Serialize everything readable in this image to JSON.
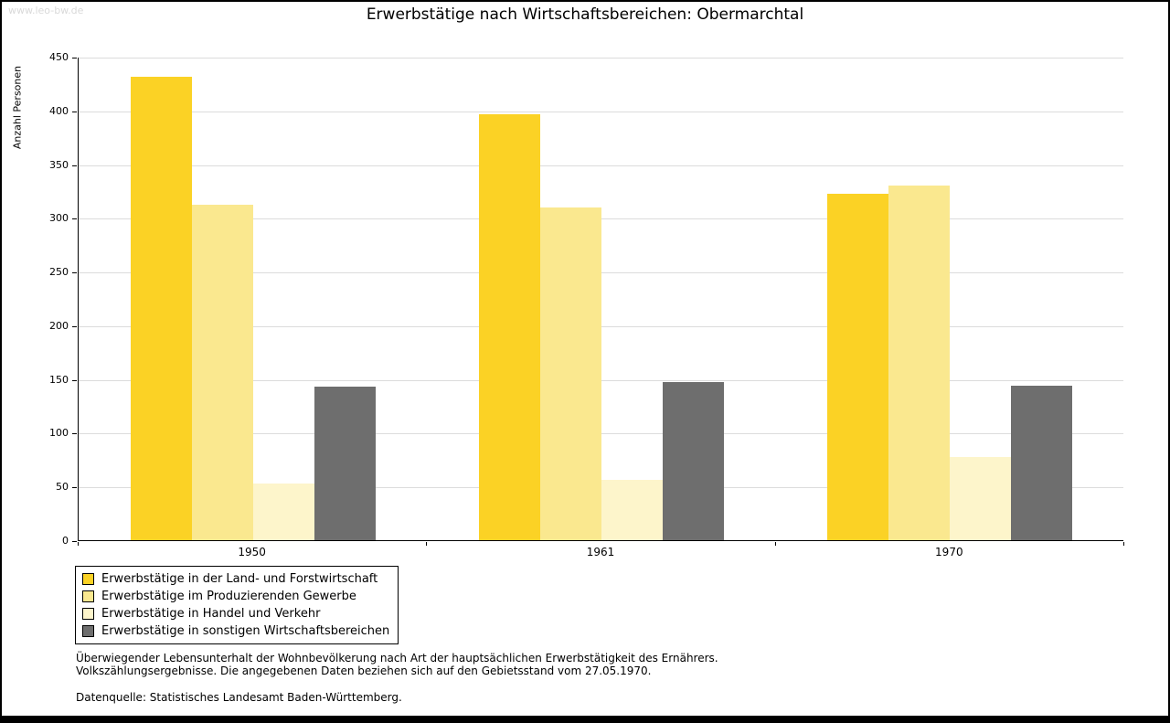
{
  "watermark": "www.leo-bw.de",
  "chart_data": {
    "type": "bar",
    "title": "Erwerbstätige nach Wirtschaftsbereichen: Obermarchtal",
    "xlabel": "",
    "ylabel": "Anzahl Personen",
    "categories": [
      "1950",
      "1961",
      "1970"
    ],
    "series": [
      {
        "name": "Erwerbstätige in der Land- und Forstwirtschaft",
        "color": "#FBD225",
        "values": [
          431,
          396,
          322
        ]
      },
      {
        "name": "Erwerbstätige im Produzierenden Gewerbe",
        "color": "#FAE88F",
        "values": [
          312,
          310,
          330
        ]
      },
      {
        "name": "Erwerbstätige in Handel und Verkehr",
        "color": "#FDF5CB",
        "values": [
          53,
          56,
          77
        ]
      },
      {
        "name": "Erwerbstätige in sonstigen Wirtschaftsbereichen",
        "color": "#6E6E6E",
        "values": [
          143,
          147,
          144
        ]
      }
    ],
    "ylim": [
      0,
      450
    ],
    "ytick_step": 50,
    "grid": true,
    "legend_position": "bottom-left"
  },
  "footnotes": {
    "line1": "Überwiegender Lebensunterhalt der Wohnbevölkerung nach Art der hauptsächlichen Erwerbstätigkeit des Ernährers.",
    "line2": "Volkszählungsergebnisse. Die angegebenen Daten beziehen sich auf den Gebietsstand vom 27.05.1970.",
    "source": "Datenquelle: Statistisches Landesamt Baden-Württemberg."
  }
}
